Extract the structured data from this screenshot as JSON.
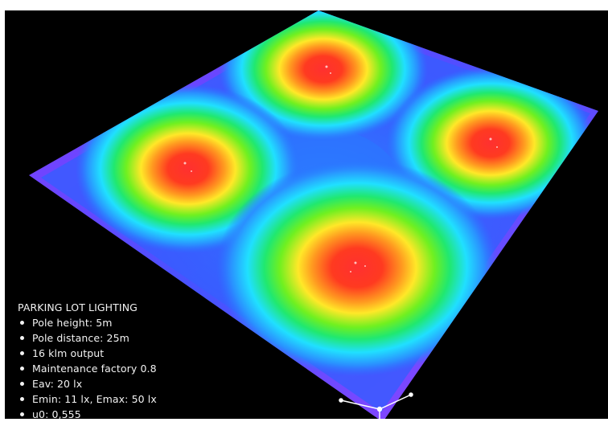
{
  "panel": {
    "title": "PARKING LOT LIGHTING",
    "items": [
      "Pole height: 5m",
      "Pole distance: 25m",
      "16 klm output",
      "Maintenance factory 0.8",
      "Eav: 20 lx",
      "Emin: 11 lx, Emax: 50 lx",
      "u0: 0,555"
    ]
  },
  "colors": {
    "background": "#000000",
    "low": "#b03cff",
    "mid_low": "#2060ff",
    "mid": "#20e8ff",
    "mid_high": "#30f020",
    "high": "#ffe020",
    "peak": "#ff2020"
  }
}
